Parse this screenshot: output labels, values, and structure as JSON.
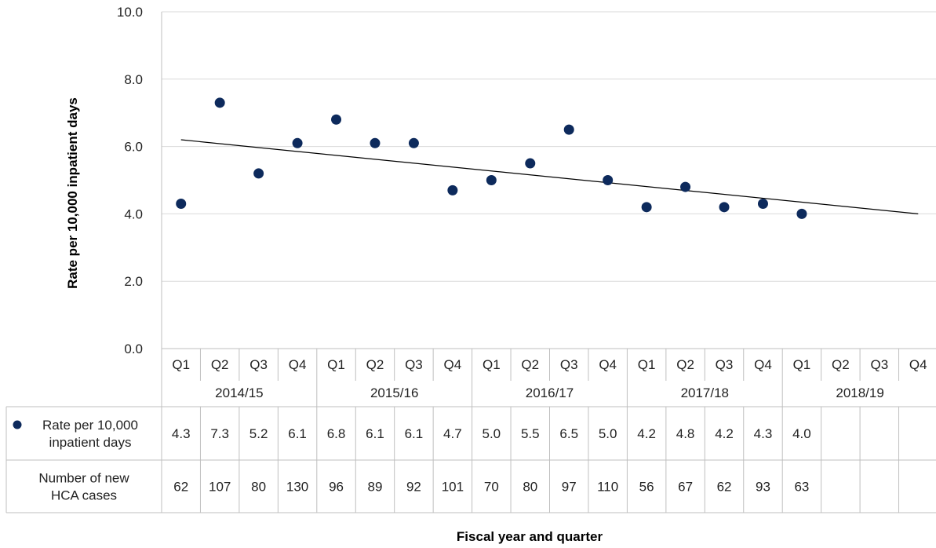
{
  "chart_data": {
    "type": "scatter",
    "title": "",
    "ylabel": "Rate per 10,000 inpatient days",
    "xlabel": "Fiscal year and quarter",
    "ylim": [
      0,
      10
    ],
    "yticks": [
      "0.0",
      "2.0",
      "4.0",
      "6.0",
      "8.0",
      "10.0"
    ],
    "quarters": [
      "Q1",
      "Q2",
      "Q3",
      "Q4",
      "Q1",
      "Q2",
      "Q3",
      "Q4",
      "Q1",
      "Q2",
      "Q3",
      "Q4",
      "Q1",
      "Q2",
      "Q3",
      "Q4",
      "Q1",
      "Q2",
      "Q3",
      "Q4"
    ],
    "fiscal_years": [
      "2014/15",
      "2015/16",
      "2016/17",
      "2017/18",
      "2018/19"
    ],
    "series": [
      {
        "name": "Rate per 10,000 inpatient days",
        "color": "#0d2a5c",
        "values": [
          4.3,
          7.3,
          5.2,
          6.1,
          6.8,
          6.1,
          6.1,
          4.7,
          5.0,
          5.5,
          6.5,
          5.0,
          4.2,
          4.8,
          4.2,
          4.3,
          4.0
        ]
      }
    ],
    "trendline": {
      "start": 6.2,
      "end": 4.0,
      "color": "#000000"
    },
    "table": {
      "rows": [
        {
          "label_lines": [
            "Rate per 10,000",
            "inpatient days"
          ],
          "marker": "dot",
          "values": [
            "4.3",
            "7.3",
            "5.2",
            "6.1",
            "6.8",
            "6.1",
            "6.1",
            "4.7",
            "5.0",
            "5.5",
            "6.5",
            "5.0",
            "4.2",
            "4.8",
            "4.2",
            "4.3",
            "4.0",
            "",
            "",
            ""
          ]
        },
        {
          "label_lines": [
            "Number of new",
            "HCA cases"
          ],
          "marker": "none",
          "values": [
            "62",
            "107",
            "80",
            "130",
            "96",
            "89",
            "92",
            "101",
            "70",
            "80",
            "97",
            "110",
            "56",
            "67",
            "62",
            "93",
            "63",
            "",
            "",
            ""
          ]
        }
      ]
    }
  }
}
